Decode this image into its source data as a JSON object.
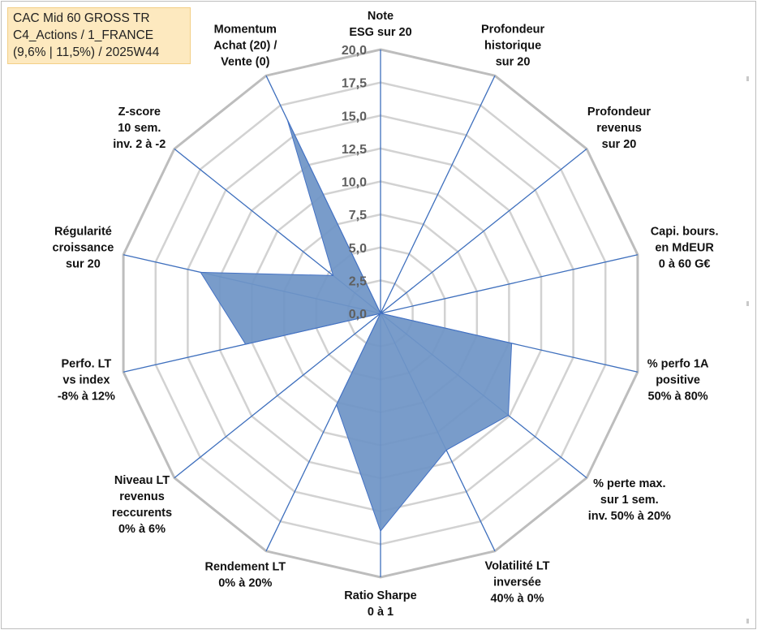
{
  "colors": {
    "fill": "#6f95c6",
    "stroke": "#4472c4",
    "spoke": "#3e6fbd",
    "ring": "#d2d2d2",
    "outer_ring": "#bdbdbd",
    "title_bg": "#fde9bf"
  },
  "title": {
    "line1": "CAC Mid 60 GROSS TR",
    "line2": "C4_Actions / 1_FRANCE",
    "line3": "(9,6% | 11,5%) / 2025W44"
  },
  "chart_data": {
    "type": "radar",
    "rmax": 20,
    "ticks": [
      "0,0",
      "2,5",
      "5,0",
      "7,5",
      "10,0",
      "12,5",
      "15,0",
      "17,5",
      "20,0"
    ],
    "axes": [
      {
        "lines": [
          "Note",
          "ESG sur 20"
        ]
      },
      {
        "lines": [
          "Profondeur",
          "historique",
          "sur 20"
        ]
      },
      {
        "lines": [
          "Profondeur",
          "revenus",
          "sur 20"
        ]
      },
      {
        "lines": [
          "Capi. bours.",
          "en MdEUR",
          "0 à 60 G€"
        ]
      },
      {
        "lines": [
          "% perfo 1A",
          "positive",
          "50% à 80%"
        ]
      },
      {
        "lines": [
          "% perte max.",
          "sur 1 sem.",
          "inv. 50% à 20%"
        ]
      },
      {
        "lines": [
          "Volatilité LT",
          "inversée",
          "40% à 0%"
        ]
      },
      {
        "lines": [
          "Ratio Sharpe",
          "0 à 1"
        ]
      },
      {
        "lines": [
          "Rendement LT",
          "0% à 20%"
        ]
      },
      {
        "lines": [
          "Niveau LT",
          "revenus",
          "reccurents",
          "0% à 6%"
        ]
      },
      {
        "lines": [
          "Perfo. LT",
          "vs index",
          "-8% à 12%"
        ]
      },
      {
        "lines": [
          "Régularité",
          "croissance",
          "sur 20"
        ]
      },
      {
        "lines": [
          "Z-score",
          "10 sem.",
          "inv. 2 à -2"
        ]
      },
      {
        "lines": [
          "Momentum",
          "Achat (20) /",
          "Vente (0)"
        ]
      }
    ],
    "series": [
      {
        "name": "CAC Mid 60 GROSS TR",
        "values": [
          0,
          0,
          0,
          0,
          10.2,
          12.4,
          11.5,
          16.5,
          7.7,
          0,
          10.5,
          14.0,
          4.6,
          16.3
        ]
      }
    ]
  }
}
